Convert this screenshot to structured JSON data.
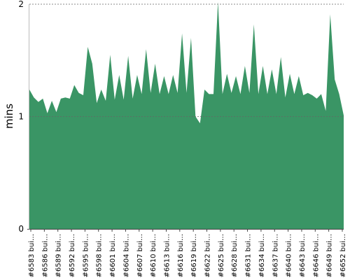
{
  "chart_data": {
    "type": "area",
    "title": "",
    "xlabel": "",
    "ylabel": "mins",
    "ylim": [
      0,
      2
    ],
    "yticks": [
      0,
      1,
      2
    ],
    "grid": {
      "y": true,
      "x": false
    },
    "legend": "none",
    "colors": {
      "fill": "#3a9565",
      "grid": "#666666",
      "axis": "#444444"
    },
    "x_tick_labels": [
      "#6583 bui…",
      "#6586 bui…",
      "#6589 bui…",
      "#6592 bui…",
      "#6595 bui…",
      "#6598 bui…",
      "#6601 bui…",
      "#6604 bui…",
      "#6607 bui…",
      "#6610 bui…",
      "#6613 bui…",
      "#6616 bui…",
      "#6619 bui…",
      "#6622 bui…",
      "#6625 bui…",
      "#6628 bui…",
      "#6631 bui…",
      "#6634 bui…",
      "#6637 bui…",
      "#6640 bui…",
      "#6643 bui…",
      "#6646 bui…",
      "#6649 bui…",
      "#6652 bui…"
    ],
    "series": [
      {
        "values": [
          1.24,
          1.17,
          1.13,
          1.16,
          1.03,
          1.14,
          1.04,
          1.16,
          1.17,
          1.16,
          1.28,
          1.21,
          1.19,
          1.62,
          1.47,
          1.12,
          1.24,
          1.14,
          1.55,
          1.15,
          1.37,
          1.15,
          1.54,
          1.16,
          1.37,
          1.2,
          1.6,
          1.21,
          1.47,
          1.2,
          1.36,
          1.2,
          1.37,
          1.21,
          1.74,
          1.21,
          1.7,
          1.0,
          0.94,
          1.24,
          1.2,
          1.2,
          2.02,
          1.2,
          1.38,
          1.21,
          1.36,
          1.2,
          1.45,
          1.21,
          1.82,
          1.2,
          1.45,
          1.2,
          1.42,
          1.2,
          1.53,
          1.17,
          1.38,
          1.2,
          1.36,
          1.19,
          1.21,
          1.19,
          1.16,
          1.2,
          1.05,
          1.91,
          1.33,
          1.2,
          1.01
        ]
      }
    ]
  }
}
